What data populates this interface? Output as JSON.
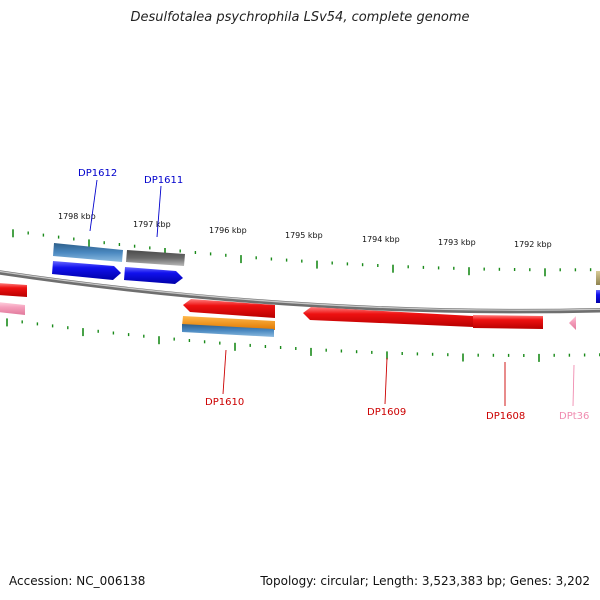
{
  "title": "Desulfotalea psychrophila LSv54, complete genome",
  "footer": {
    "accession": "Accession: NC_006138",
    "summary": "Topology: circular; Length: 3,523,383 bp; Genes: 3,202"
  },
  "colors": {
    "backbone": "#8a8a8a",
    "ticks": "#1a8a1a",
    "label_blue": "#0000cc",
    "label_red": "#cc0000",
    "label_pink": "#f08cb0",
    "gene_red": "#ee1111",
    "gene_blue": "#1111ee",
    "gene_pink": "#f5a0bc",
    "gene_steel": "#4a88c0",
    "gene_gray": "#666666",
    "gene_orange": "#f59a1a",
    "gene_olive": "#b5a66e"
  },
  "scale_labels": [
    "1798 kbp",
    "1797 kbp",
    "1796 kbp",
    "1795 kbp",
    "1794 kbp",
    "1793 kbp",
    "1792 kbp"
  ],
  "gene_labels": [
    {
      "id": "DP1612",
      "color": "blue"
    },
    {
      "id": "DP1611",
      "color": "blue"
    },
    {
      "id": "DP1610",
      "color": "red"
    },
    {
      "id": "DP1609",
      "color": "red"
    },
    {
      "id": "DP1608",
      "color": "red"
    },
    {
      "id": "DPt36",
      "color": "pink"
    }
  ]
}
